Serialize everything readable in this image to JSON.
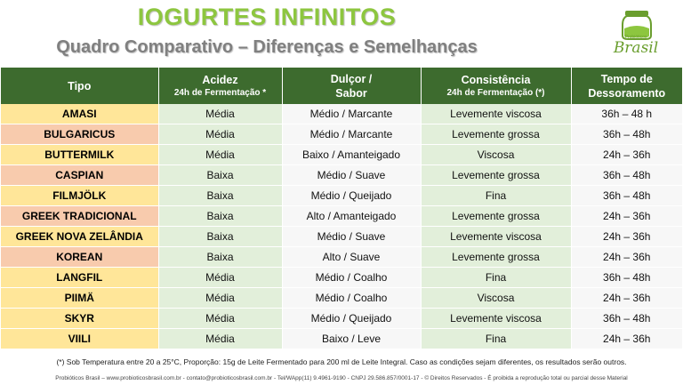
{
  "title": "IOGURTES INFINITOS",
  "subtitle": "Quadro Comparativo – Diferenças e Semelhanças",
  "logo": {
    "small_text": "Probióticos",
    "brand_text": "Brasil"
  },
  "table": {
    "headers": [
      {
        "main": "Tipo",
        "sub": ""
      },
      {
        "main": "Acidez",
        "sub": "24h de Fermentação *"
      },
      {
        "main": "Dulçor /",
        "sub": "Sabor"
      },
      {
        "main": "Consistência",
        "sub": "24h de Fermentação (*)"
      },
      {
        "main": "Tempo de",
        "sub": "Dessoramento"
      }
    ],
    "rows": [
      {
        "tipo": "AMASI",
        "acidez": "Média",
        "dulcor": "Médio / Marcante",
        "consistencia": "Levemente viscosa",
        "tempo": "36h – 48 h"
      },
      {
        "tipo": "BULGARICUS",
        "acidez": "Média",
        "dulcor": "Médio / Marcante",
        "consistencia": "Levemente grossa",
        "tempo": "36h – 48h"
      },
      {
        "tipo": "BUTTERMILK",
        "acidez": "Média",
        "dulcor": "Baixo / Amanteigado",
        "consistencia": "Viscosa",
        "tempo": "24h – 36h"
      },
      {
        "tipo": "CASPIAN",
        "acidez": "Baixa",
        "dulcor": "Médio / Suave",
        "consistencia": "Levemente grossa",
        "tempo": "36h – 48h"
      },
      {
        "tipo": "FILMJÖLK",
        "acidez": "Baixa",
        "dulcor": "Médio / Queijado",
        "consistencia": "Fina",
        "tempo": "36h – 48h"
      },
      {
        "tipo": "GREEK TRADICIONAL",
        "acidez": "Baixa",
        "dulcor": "Alto / Amanteigado",
        "consistencia": "Levemente grossa",
        "tempo": "24h – 36h"
      },
      {
        "tipo": "GREEK NOVA ZELÂNDIA",
        "acidez": "Baixa",
        "dulcor": "Médio / Suave",
        "consistencia": "Levemente viscosa",
        "tempo": "24h – 36h"
      },
      {
        "tipo": "KOREAN",
        "acidez": "Baixa",
        "dulcor": "Alto / Suave",
        "consistencia": "Levemente grossa",
        "tempo": "24h – 36h"
      },
      {
        "tipo": "LANGFIL",
        "acidez": "Média",
        "dulcor": "Médio / Coalho",
        "consistencia": "Fina",
        "tempo": "36h – 48h"
      },
      {
        "tipo": "PIIMÄ",
        "acidez": "Média",
        "dulcor": "Médio / Coalho",
        "consistencia": "Viscosa",
        "tempo": "24h – 36h"
      },
      {
        "tipo": "SKYR",
        "acidez": "Média",
        "dulcor": "Médio / Queijado",
        "consistencia": "Levemente viscosa",
        "tempo": "36h – 48h"
      },
      {
        "tipo": "VIILI",
        "acidez": "Média",
        "dulcor": "Baixo / Leve",
        "consistencia": "Fina",
        "tempo": "24h – 36h"
      }
    ]
  },
  "footnote": "(*) Sob Temperatura entre 20 a 25°C, Proporção: 15g de Leite Fermentado para 200 ml de Leite Integral. Caso as condições sejam diferentes, os resultados serão outros.",
  "footer": "Probióticos Brasil – www.probioticosbrasil.com.br - contato@probioticosbrasil.com.br - Tel/WApp(11) 9.4961-9190 - CNPJ 29.586.857/0001-17 - © Direitos Reservados - É proibida a reprodução total ou parcial desse Material",
  "colors": {
    "header_bg": "#3d6b2e",
    "title_green": "#8dc63f",
    "row_peach": "#f8cbad",
    "row_yellow": "#ffe699",
    "cell_green": "#e2efda"
  }
}
